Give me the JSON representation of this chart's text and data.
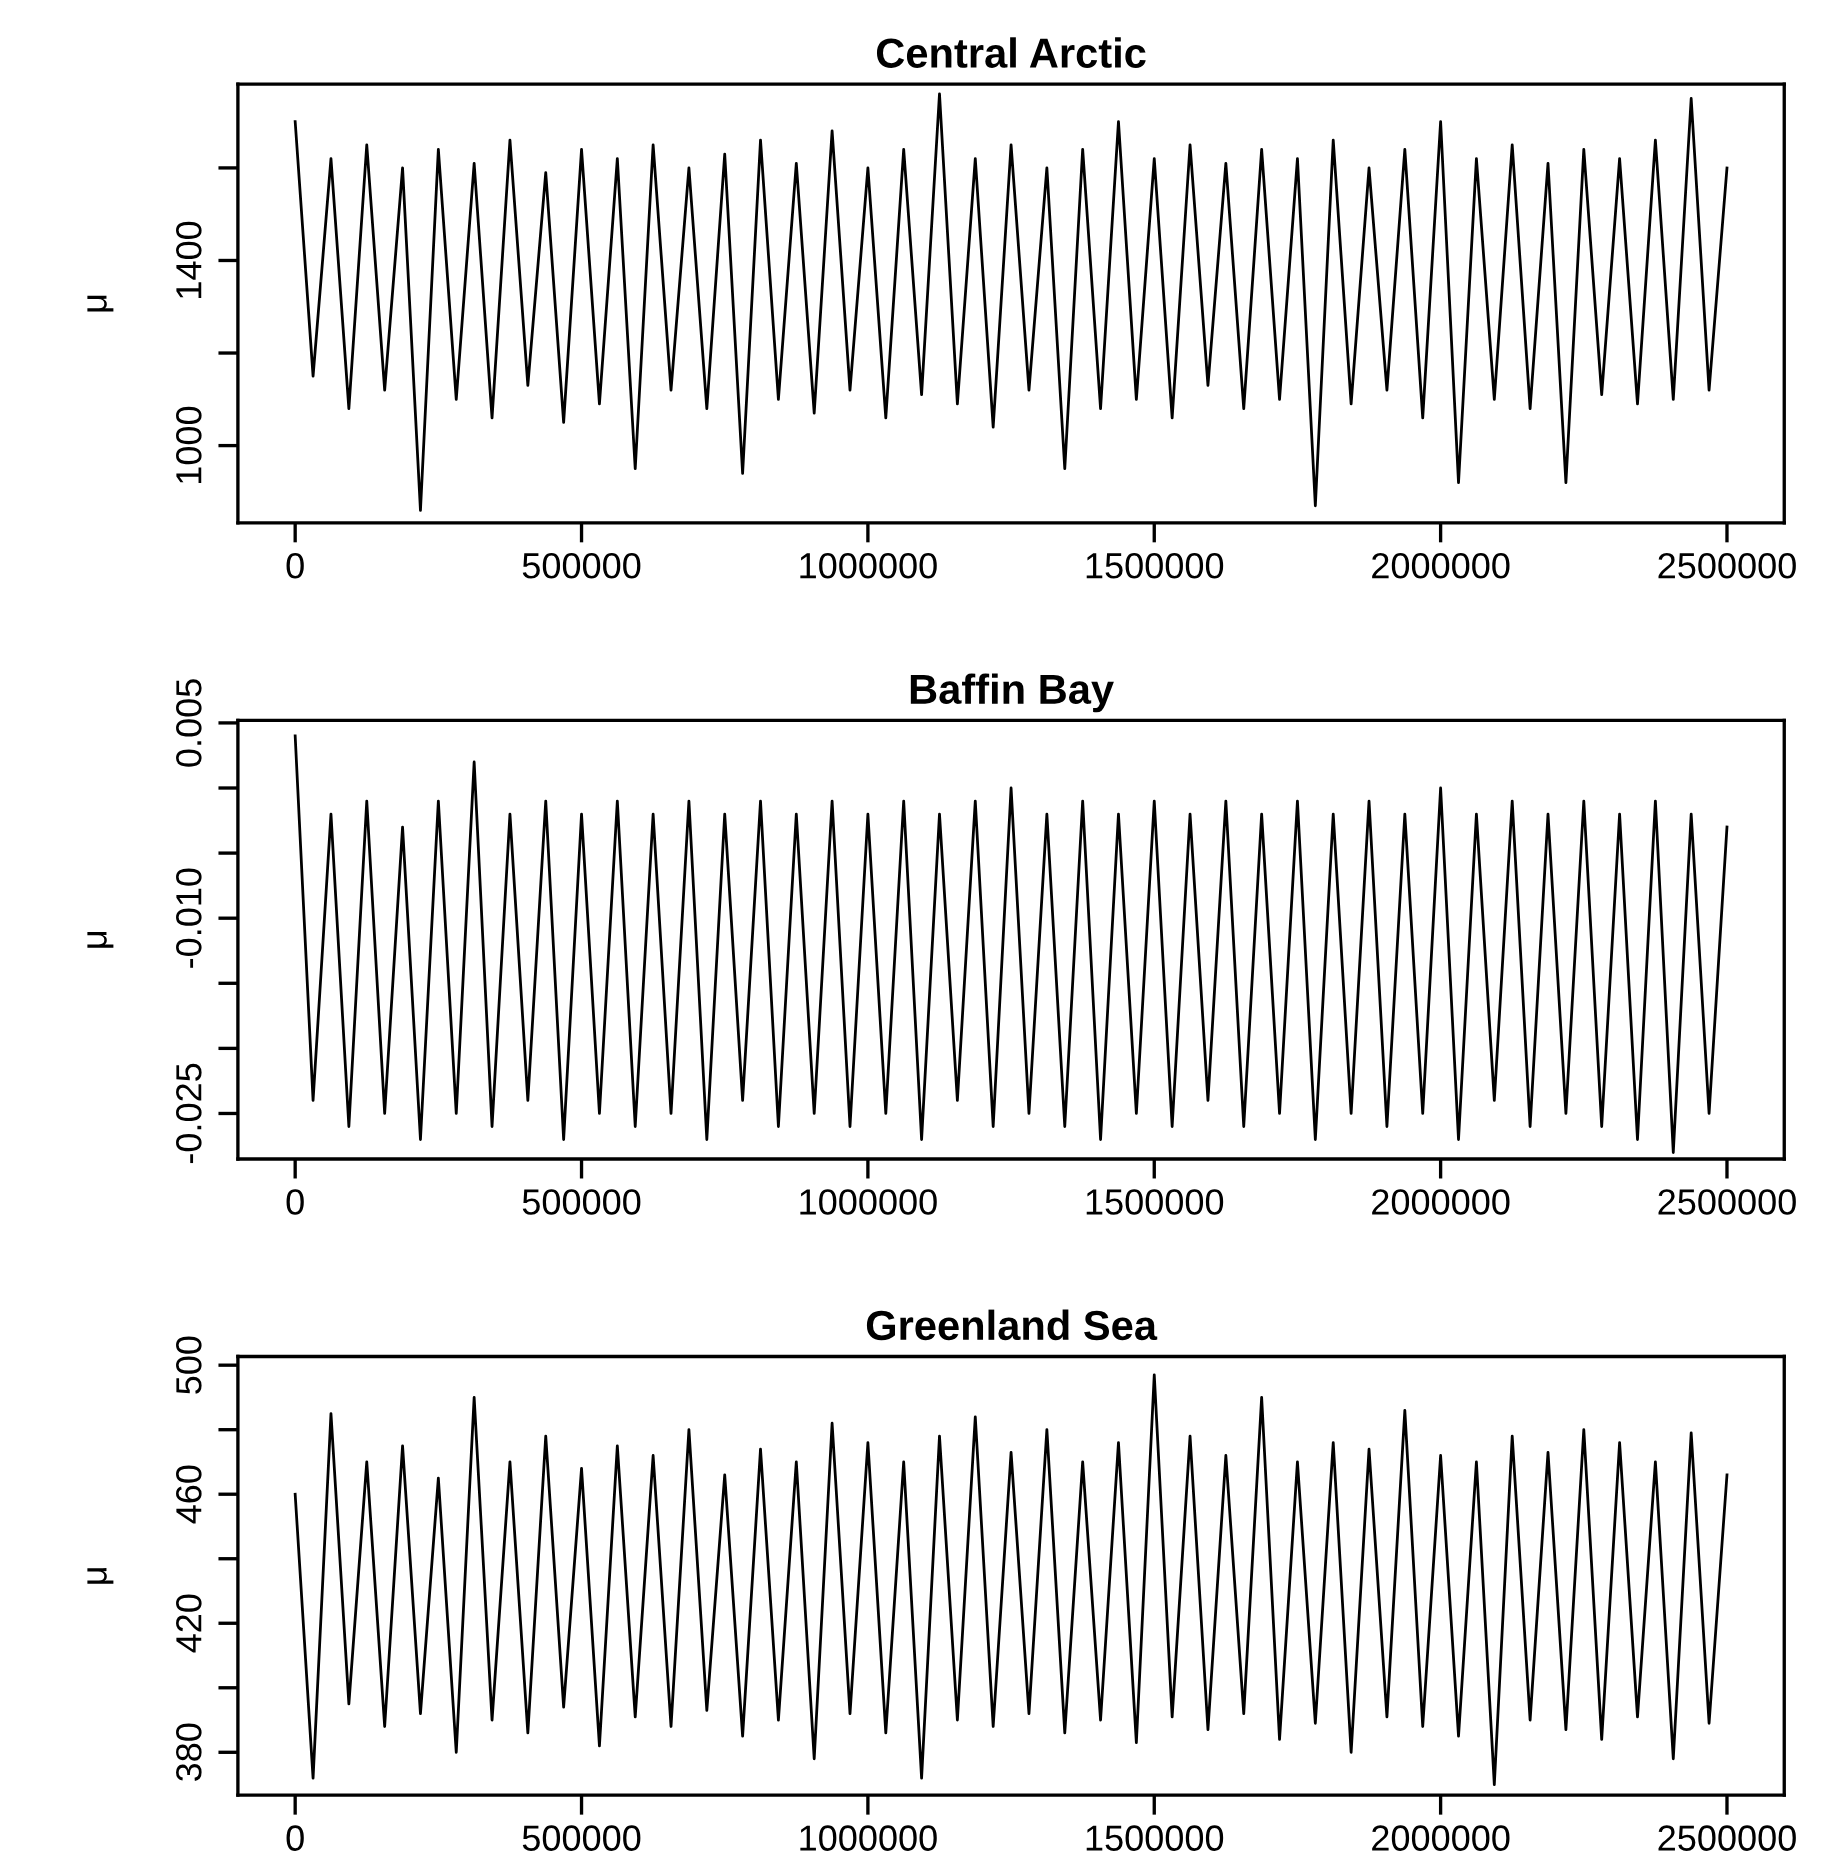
{
  "chart_data": [
    {
      "type": "line",
      "title": "Central Arctic",
      "ylabel": "μ",
      "grid": false,
      "x": [
        0,
        31250,
        62500,
        93750,
        125000,
        156250,
        187500,
        218750,
        250000,
        281250,
        312500,
        343750,
        375000,
        406250,
        437500,
        468750,
        500000,
        531250,
        562500,
        593750,
        625000,
        656250,
        687500,
        718750,
        750000,
        781250,
        812500,
        843750,
        875000,
        906250,
        937500,
        968750,
        1000000,
        1031250,
        1062500,
        1093750,
        1125000,
        1156250,
        1187500,
        1218750,
        1250000,
        1281250,
        1312500,
        1343750,
        1375000,
        1406250,
        1437500,
        1468750,
        1500000,
        1531250,
        1562500,
        1593750,
        1625000,
        1656250,
        1687500,
        1718750,
        1750000,
        1781250,
        1812500,
        1843750,
        1875000,
        1906250,
        1937500,
        1968750,
        2000000,
        2031250,
        2062500,
        2093750,
        2125000,
        2156250,
        2187500,
        2218750,
        2250000,
        2281250,
        2312500,
        2343750,
        2375000,
        2406250,
        2437500,
        2468750,
        2500000
      ],
      "xlim": [
        -100000,
        2600000
      ],
      "xticks": [
        0,
        500000,
        1000000,
        1500000,
        2000000,
        2500000
      ],
      "ylim": [
        833,
        1781
      ],
      "yticks": [
        1000,
        {
          "value": 1200,
          "label": null
        },
        1400,
        {
          "value": 1600,
          "label": null
        }
      ],
      "series": [
        {
          "color": "#000000",
          "values": [
            1700,
            1150,
            1620,
            1080,
            1650,
            1120,
            1600,
            860,
            1640,
            1100,
            1610,
            1060,
            1660,
            1130,
            1590,
            1050,
            1640,
            1090,
            1620,
            950,
            1650,
            1120,
            1600,
            1080,
            1630,
            940,
            1660,
            1100,
            1610,
            1070,
            1680,
            1120,
            1600,
            1060,
            1640,
            1110,
            1760,
            1090,
            1620,
            1040,
            1650,
            1120,
            1600,
            950,
            1640,
            1080,
            1700,
            1100,
            1620,
            1060,
            1650,
            1130,
            1610,
            1080,
            1640,
            1100,
            1620,
            870,
            1660,
            1090,
            1600,
            1120,
            1640,
            1060,
            1700,
            920,
            1620,
            1100,
            1650,
            1080,
            1610,
            920,
            1640,
            1110,
            1620,
            1090,
            1660,
            1100,
            1750,
            1120,
            1600
          ]
        }
      ]
    },
    {
      "type": "line",
      "title": "Baffin Bay",
      "ylabel": "μ",
      "grid": false,
      "x": [
        0,
        31250,
        62500,
        93750,
        125000,
        156250,
        187500,
        218750,
        250000,
        281250,
        312500,
        343750,
        375000,
        406250,
        437500,
        468750,
        500000,
        531250,
        562500,
        593750,
        625000,
        656250,
        687500,
        718750,
        750000,
        781250,
        812500,
        843750,
        875000,
        906250,
        937500,
        968750,
        1000000,
        1031250,
        1062500,
        1093750,
        1125000,
        1156250,
        1187500,
        1218750,
        1250000,
        1281250,
        1312500,
        1343750,
        1375000,
        1406250,
        1437500,
        1468750,
        1500000,
        1531250,
        1562500,
        1593750,
        1625000,
        1656250,
        1687500,
        1718750,
        1750000,
        1781250,
        1812500,
        1843750,
        1875000,
        1906250,
        1937500,
        1968750,
        2000000,
        2031250,
        2062500,
        2093750,
        2125000,
        2156250,
        2187500,
        2218750,
        2250000,
        2281250,
        2312500,
        2343750,
        2375000,
        2406250,
        2437500,
        2468750,
        2500000
      ],
      "xlim": [
        -100000,
        2600000
      ],
      "xticks": [
        0,
        500000,
        1000000,
        1500000,
        2000000,
        2500000
      ],
      "ylim": [
        -0.0285,
        0.0052
      ],
      "yticks": [
        {
          "value": -0.025,
          "label": "-0.025"
        },
        {
          "value": -0.02,
          "label": null
        },
        {
          "value": -0.015,
          "label": null
        },
        {
          "value": -0.01,
          "label": "-0.010"
        },
        {
          "value": -0.005,
          "label": null
        },
        {
          "value": 0,
          "label": null
        },
        {
          "value": 0.005,
          "label": "0.005"
        }
      ],
      "series": [
        {
          "color": "#000000",
          "values": [
            0.004,
            -0.024,
            -0.002,
            -0.026,
            -0.001,
            -0.025,
            -0.003,
            -0.027,
            -0.001,
            -0.025,
            0.002,
            -0.026,
            -0.002,
            -0.024,
            -0.001,
            -0.027,
            -0.002,
            -0.025,
            -0.001,
            -0.026,
            -0.002,
            -0.025,
            -0.001,
            -0.027,
            -0.002,
            -0.024,
            -0.001,
            -0.026,
            -0.002,
            -0.025,
            -0.001,
            -0.026,
            -0.002,
            -0.025,
            -0.001,
            -0.027,
            -0.002,
            -0.024,
            -0.001,
            -0.026,
            0.0,
            -0.025,
            -0.002,
            -0.026,
            -0.001,
            -0.027,
            -0.002,
            -0.025,
            -0.001,
            -0.026,
            -0.002,
            -0.024,
            -0.001,
            -0.026,
            -0.002,
            -0.025,
            -0.001,
            -0.027,
            -0.002,
            -0.025,
            -0.001,
            -0.026,
            -0.002,
            -0.025,
            0.0,
            -0.027,
            -0.002,
            -0.024,
            -0.001,
            -0.026,
            -0.002,
            -0.025,
            -0.001,
            -0.026,
            -0.002,
            -0.027,
            -0.001,
            -0.028,
            -0.002,
            -0.025,
            -0.003
          ]
        }
      ]
    },
    {
      "type": "line",
      "title": "Greenland Sea",
      "ylabel": "μ",
      "grid": false,
      "x": [
        0,
        31250,
        62500,
        93750,
        125000,
        156250,
        187500,
        218750,
        250000,
        281250,
        312500,
        343750,
        375000,
        406250,
        437500,
        468750,
        500000,
        531250,
        562500,
        593750,
        625000,
        656250,
        687500,
        718750,
        750000,
        781250,
        812500,
        843750,
        875000,
        906250,
        937500,
        968750,
        1000000,
        1031250,
        1062500,
        1093750,
        1125000,
        1156250,
        1187500,
        1218750,
        1250000,
        1281250,
        1312500,
        1343750,
        1375000,
        1406250,
        1437500,
        1468750,
        1500000,
        1531250,
        1562500,
        1593750,
        1625000,
        1656250,
        1687500,
        1718750,
        1750000,
        1781250,
        1812500,
        1843750,
        1875000,
        1906250,
        1937500,
        1968750,
        2000000,
        2031250,
        2062500,
        2093750,
        2125000,
        2156250,
        2187500,
        2218750,
        2250000,
        2281250,
        2312500,
        2343750,
        2375000,
        2406250,
        2437500,
        2468750,
        2500000
      ],
      "xlim": [
        -100000,
        2600000
      ],
      "xticks": [
        0,
        500000,
        1000000,
        1500000,
        2000000,
        2500000
      ],
      "ylim": [
        366.7,
        502.7
      ],
      "yticks": [
        380,
        {
          "value": 400,
          "label": null
        },
        420,
        {
          "value": 440,
          "label": null
        },
        460,
        {
          "value": 480,
          "label": null
        },
        500
      ],
      "series": [
        {
          "color": "#000000",
          "values": [
            460,
            372,
            485,
            395,
            470,
            388,
            475,
            392,
            465,
            380,
            490,
            390,
            470,
            386,
            478,
            394,
            468,
            382,
            475,
            391,
            472,
            388,
            480,
            393,
            466,
            385,
            474,
            390,
            470,
            378,
            482,
            392,
            476,
            386,
            470,
            372,
            478,
            390,
            484,
            388,
            473,
            392,
            480,
            386,
            470,
            390,
            476,
            383,
            497,
            391,
            478,
            387,
            472,
            392,
            490,
            384,
            470,
            389,
            476,
            380,
            474,
            391,
            486,
            388,
            472,
            385,
            470,
            370,
            478,
            390,
            473,
            387,
            480,
            384,
            476,
            391,
            470,
            378,
            479,
            389,
            466
          ]
        }
      ]
    }
  ]
}
